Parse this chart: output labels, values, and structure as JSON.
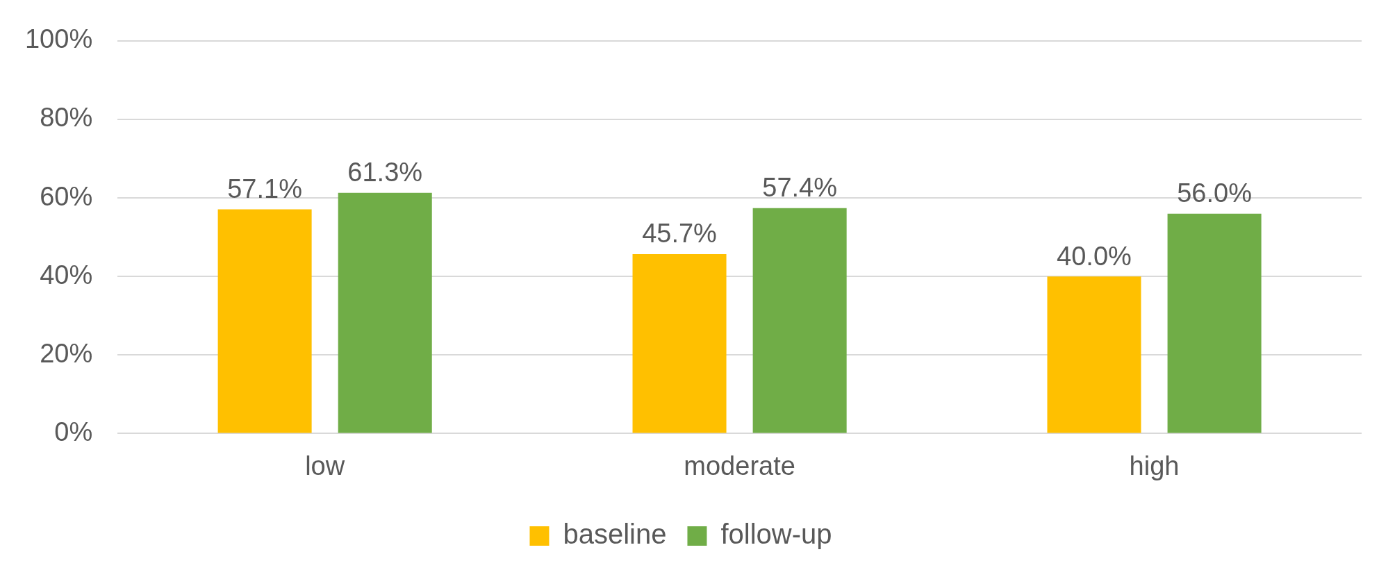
{
  "chart_data": {
    "type": "bar",
    "categories": [
      "low",
      "moderate",
      "high"
    ],
    "series": [
      {
        "name": "baseline",
        "color": "#ffc000",
        "values": [
          57.1,
          45.7,
          40.0
        ],
        "value_labels": [
          "57.1%",
          "45.7%",
          "40.0%"
        ]
      },
      {
        "name": "follow-up",
        "color": "#70ad47",
        "values": [
          61.3,
          57.4,
          56.0
        ],
        "value_labels": [
          "61.3%",
          "57.4%",
          "56.0%"
        ]
      }
    ],
    "ylim": [
      0,
      100
    ],
    "yticks": [
      {
        "value": 0,
        "label": "0%"
      },
      {
        "value": 20,
        "label": "20%"
      },
      {
        "value": 40,
        "label": "40%"
      },
      {
        "value": 60,
        "label": "60%"
      },
      {
        "value": 80,
        "label": "80%"
      },
      {
        "value": 100,
        "label": "100%"
      }
    ],
    "grid": "y",
    "legend": "bottom"
  }
}
